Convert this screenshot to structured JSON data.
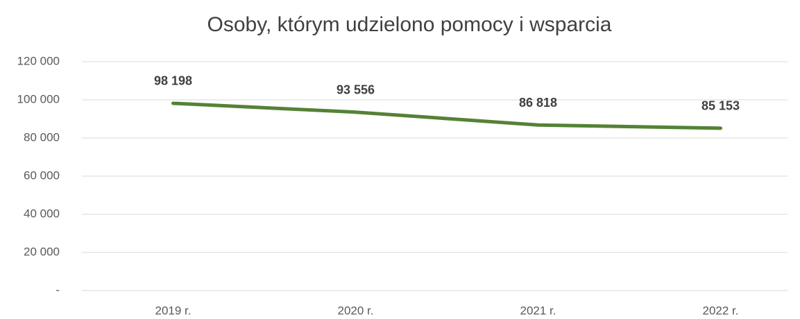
{
  "chart_data": {
    "type": "line",
    "title": "Osoby, którym udzielono pomocy i wsparcia",
    "categories": [
      "2019 r.",
      "2020 r.",
      "2021 r.",
      "2022 r."
    ],
    "series": [
      {
        "name": "Osoby",
        "color": "#548235",
        "values": [
          98198,
          93556,
          86818,
          85153
        ],
        "value_labels": [
          "98 198",
          "93 556",
          "86 818",
          "85 153"
        ]
      }
    ],
    "ylim": [
      0,
      120000
    ],
    "yticks": [
      {
        "value": 0,
        "label": "-"
      },
      {
        "value": 20000,
        "label": "20 000"
      },
      {
        "value": 40000,
        "label": "40 000"
      },
      {
        "value": 60000,
        "label": "60 000"
      },
      {
        "value": 80000,
        "label": "80 000"
      },
      {
        "value": 100000,
        "label": "100 000"
      },
      {
        "value": 120000,
        "label": "120 000"
      }
    ],
    "grid": true
  }
}
